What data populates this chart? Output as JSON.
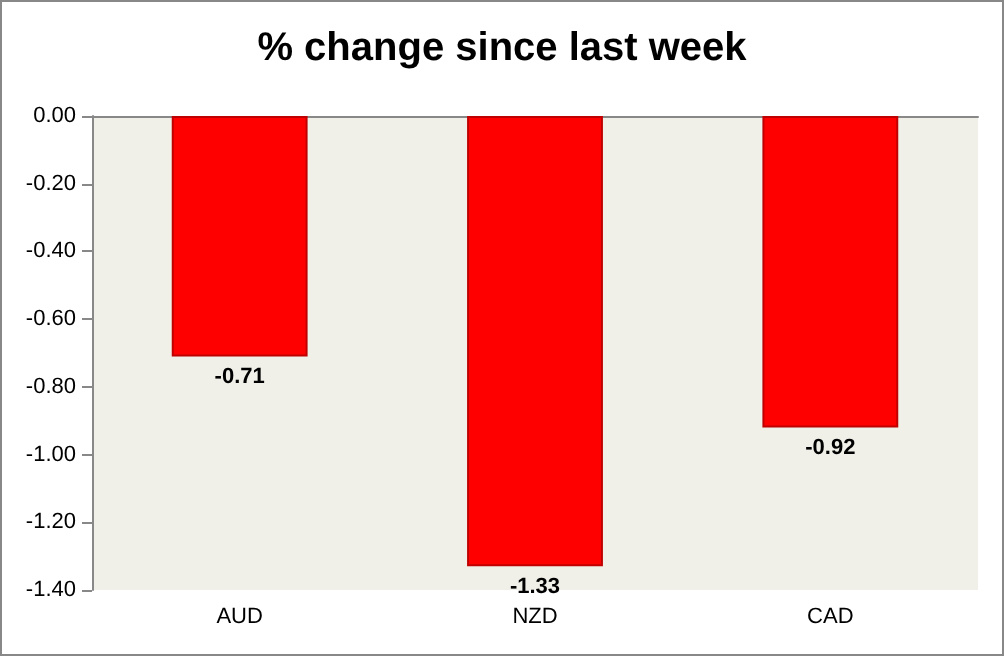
{
  "chart_data": {
    "type": "bar",
    "title": "% change since last week",
    "categories": [
      "AUD",
      "NZD",
      "CAD"
    ],
    "values": [
      -0.71,
      -1.33,
      -0.92
    ],
    "color": "#ff0000",
    "ylim": [
      -1.4,
      0
    ],
    "yticks": [
      {
        "value": 0,
        "label": "0.00"
      },
      {
        "value": -0.2,
        "label": "-0.20"
      },
      {
        "value": -0.4,
        "label": "-0.40"
      },
      {
        "value": -0.6,
        "label": "-0.60"
      },
      {
        "value": -0.8,
        "label": "-0.80"
      },
      {
        "value": -1,
        "label": "-1.00"
      },
      {
        "value": -1.2,
        "label": "-1.20"
      },
      {
        "value": -1.4,
        "label": "-1.40"
      }
    ],
    "data_labels": true
  }
}
